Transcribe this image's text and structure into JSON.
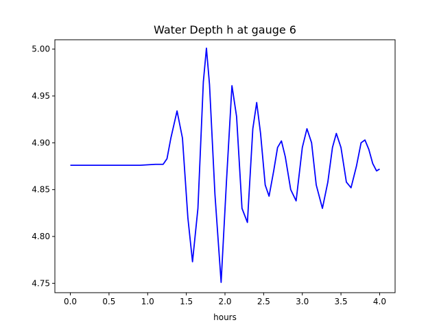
{
  "chart_data": {
    "type": "line",
    "title": "Water Depth h at gauge 6",
    "xlabel": "hours",
    "ylabel": "",
    "xlim": [
      -0.2,
      4.2
    ],
    "ylim": [
      4.74,
      5.01
    ],
    "x_ticks": [
      0.0,
      0.5,
      1.0,
      1.5,
      2.0,
      2.5,
      3.0,
      3.5,
      4.0
    ],
    "x_tick_labels": [
      "0.0",
      "0.5",
      "1.0",
      "1.5",
      "2.0",
      "2.5",
      "3.0",
      "3.5",
      "4.0"
    ],
    "y_ticks": [
      4.75,
      4.8,
      4.85,
      4.9,
      4.95,
      5.0
    ],
    "y_tick_labels": [
      "4.75",
      "4.80",
      "4.85",
      "4.90",
      "4.95",
      "5.00"
    ],
    "grid": false,
    "legend": "none",
    "colors": {
      "line": "#0000ff"
    },
    "series": [
      {
        "color": "#0000ff",
        "x": [
          0.0,
          0.5,
          0.9,
          1.1,
          1.2,
          1.25,
          1.3,
          1.38,
          1.45,
          1.52,
          1.58,
          1.65,
          1.72,
          1.76,
          1.8,
          1.87,
          1.95,
          2.02,
          2.09,
          2.15,
          2.22,
          2.29,
          2.36,
          2.41,
          2.46,
          2.52,
          2.57,
          2.63,
          2.68,
          2.73,
          2.78,
          2.85,
          2.92,
          3.0,
          3.06,
          3.12,
          3.18,
          3.26,
          3.33,
          3.39,
          3.44,
          3.5,
          3.57,
          3.63,
          3.7,
          3.76,
          3.81,
          3.86,
          3.91,
          3.96,
          4.0
        ],
        "y": [
          4.876,
          4.876,
          4.876,
          4.877,
          4.877,
          4.883,
          4.905,
          4.934,
          4.905,
          4.82,
          4.773,
          4.83,
          4.965,
          5.001,
          4.962,
          4.845,
          4.751,
          4.86,
          4.961,
          4.928,
          4.83,
          4.815,
          4.915,
          4.943,
          4.91,
          4.855,
          4.843,
          4.87,
          4.895,
          4.902,
          4.885,
          4.85,
          4.838,
          4.895,
          4.915,
          4.9,
          4.855,
          4.83,
          4.858,
          4.895,
          4.91,
          4.895,
          4.858,
          4.852,
          4.875,
          4.9,
          4.903,
          4.893,
          4.878,
          4.87,
          4.872
        ]
      }
    ]
  }
}
